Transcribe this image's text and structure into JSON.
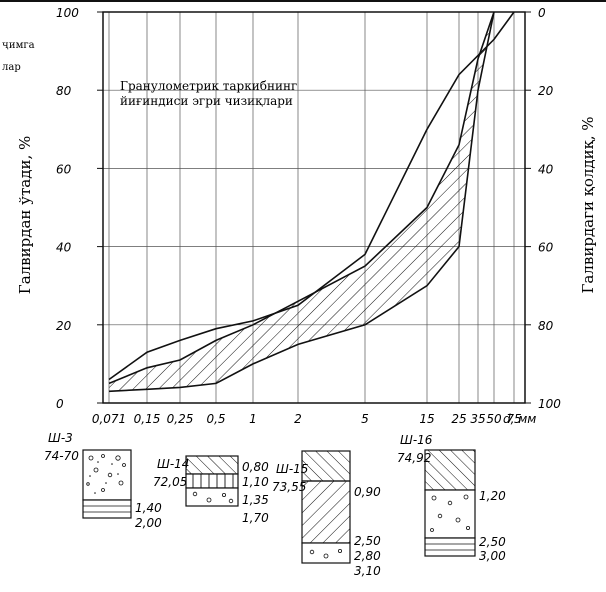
{
  "chart_data": {
    "type": "line",
    "title": "Гранулометрик таркибнинг йиғиндиси эгри чизиқлари",
    "title_lines": [
      "Гранулометрик таркибнинг",
      "йиғиндиси эгри чизиқлари"
    ],
    "ylabel_left": "Галвирдан ўтади, %",
    "ylabel_right": "Галвирдаги қолдиқ, %",
    "left_note": [
      "ҷимга",
      "лар"
    ],
    "x_ticks": [
      "0,071",
      "0,15",
      "0,25",
      "0,5",
      "1",
      "2",
      "5",
      "15",
      "25",
      "35",
      "50",
      "75"
    ],
    "x_unit": "d, мм",
    "y_ticks": [
      "0",
      "20",
      "40",
      "60",
      "80",
      "100"
    ],
    "y_right_ticks": [
      "100",
      "80",
      "60",
      "40",
      "20",
      "0"
    ],
    "ylim": [
      0,
      100
    ],
    "x_scale": "log",
    "grid": true,
    "series": [
      {
        "x": [
          0.071,
          0.15,
          0.25,
          0.5,
          1,
          2,
          5,
          15,
          25,
          50,
          75
        ],
        "y": [
          6,
          13,
          16,
          19,
          21,
          25,
          38,
          70,
          84,
          93,
          100
        ]
      },
      {
        "x": [
          0.071,
          0.15,
          0.25,
          0.5,
          1,
          2,
          5,
          15,
          25,
          35,
          50
        ],
        "y": [
          5,
          9,
          11,
          16,
          20,
          26,
          35,
          50,
          66,
          88,
          100
        ]
      },
      {
        "x": [
          0.071,
          0.15,
          0.25,
          0.5,
          1,
          2,
          5,
          15,
          25,
          35,
          50
        ],
        "y": [
          3,
          3.5,
          4,
          5,
          10,
          15,
          20,
          30,
          40,
          80,
          100
        ]
      }
    ],
    "hatched_band": "between upper and lower envelope"
  },
  "boreholes": [
    {
      "name": "Ш-3",
      "elevation": "74-70",
      "depths": [
        "1,40",
        "2,00"
      ]
    },
    {
      "name": "Ш-14",
      "elevation": "72,05",
      "depths": [
        "0,80",
        "1,10",
        "1,35",
        "1,70"
      ]
    },
    {
      "name": "Ш-15",
      "elevation": "73,55",
      "depths": [
        "0,90",
        "2,50",
        "2,80",
        "3,10"
      ]
    },
    {
      "name": "Ш-16",
      "elevation": "74,92",
      "depths": [
        "1,20",
        "2,50",
        "3,00"
      ]
    }
  ]
}
